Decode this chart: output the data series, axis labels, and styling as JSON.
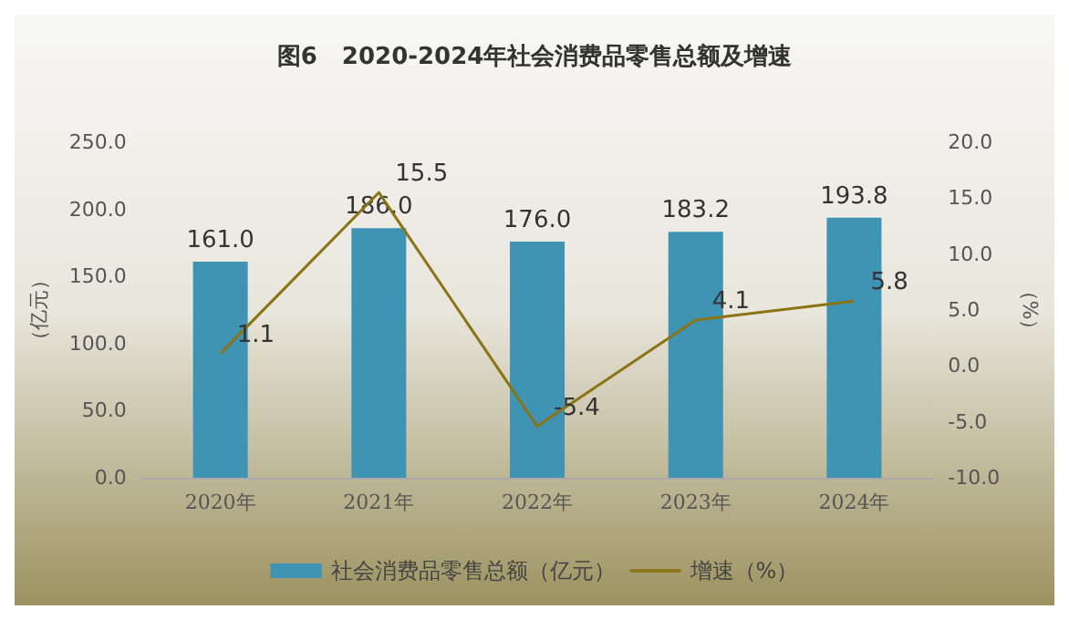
{
  "chart_data": {
    "type": "bar",
    "title": "图6   2020-2024年社会消费品零售总额及增速",
    "ylabel": "（亿元）",
    "y2label": "（%）",
    "categories": [
      "2020年",
      "2021年",
      "2022年",
      "2023年",
      "2024年"
    ],
    "series": [
      {
        "name": "社会消费品零售总额（亿元）",
        "color": "#3f93b3",
        "values": [
          161.0,
          186.0,
          176.0,
          183.2,
          193.8
        ],
        "value_labels": [
          "161.0",
          "186.0",
          "176.0",
          "183.2",
          "193.8"
        ]
      },
      {
        "name": "增速（%）",
        "type": "line",
        "axis": "y2",
        "color": "#8a7415",
        "values": [
          1.1,
          15.5,
          -5.4,
          4.1,
          5.8
        ],
        "value_labels": [
          "1.1",
          "15.5",
          "-5.4",
          "4.1",
          "5.8"
        ]
      }
    ],
    "ylim": [
      0,
      250
    ],
    "yticks": [
      {
        "value": 0,
        "label": "0.0"
      },
      {
        "value": 50,
        "label": "50.0"
      },
      {
        "value": 100,
        "label": "100.0"
      },
      {
        "value": 150,
        "label": "150.0"
      },
      {
        "value": 200,
        "label": "200.0"
      },
      {
        "value": 250,
        "label": "250.0"
      }
    ],
    "y2lim": [
      -10,
      20
    ],
    "y2ticks": [
      {
        "value": -10,
        "label": "-10.0"
      },
      {
        "value": -5,
        "label": "-5.0"
      },
      {
        "value": 0,
        "label": "0.0"
      },
      {
        "value": 5,
        "label": "5.0"
      },
      {
        "value": 10,
        "label": "10.0"
      },
      {
        "value": 15,
        "label": "15.0"
      },
      {
        "value": 20,
        "label": "20.0"
      }
    ],
    "grid": false,
    "legend": "bottom",
    "marker": "none"
  }
}
